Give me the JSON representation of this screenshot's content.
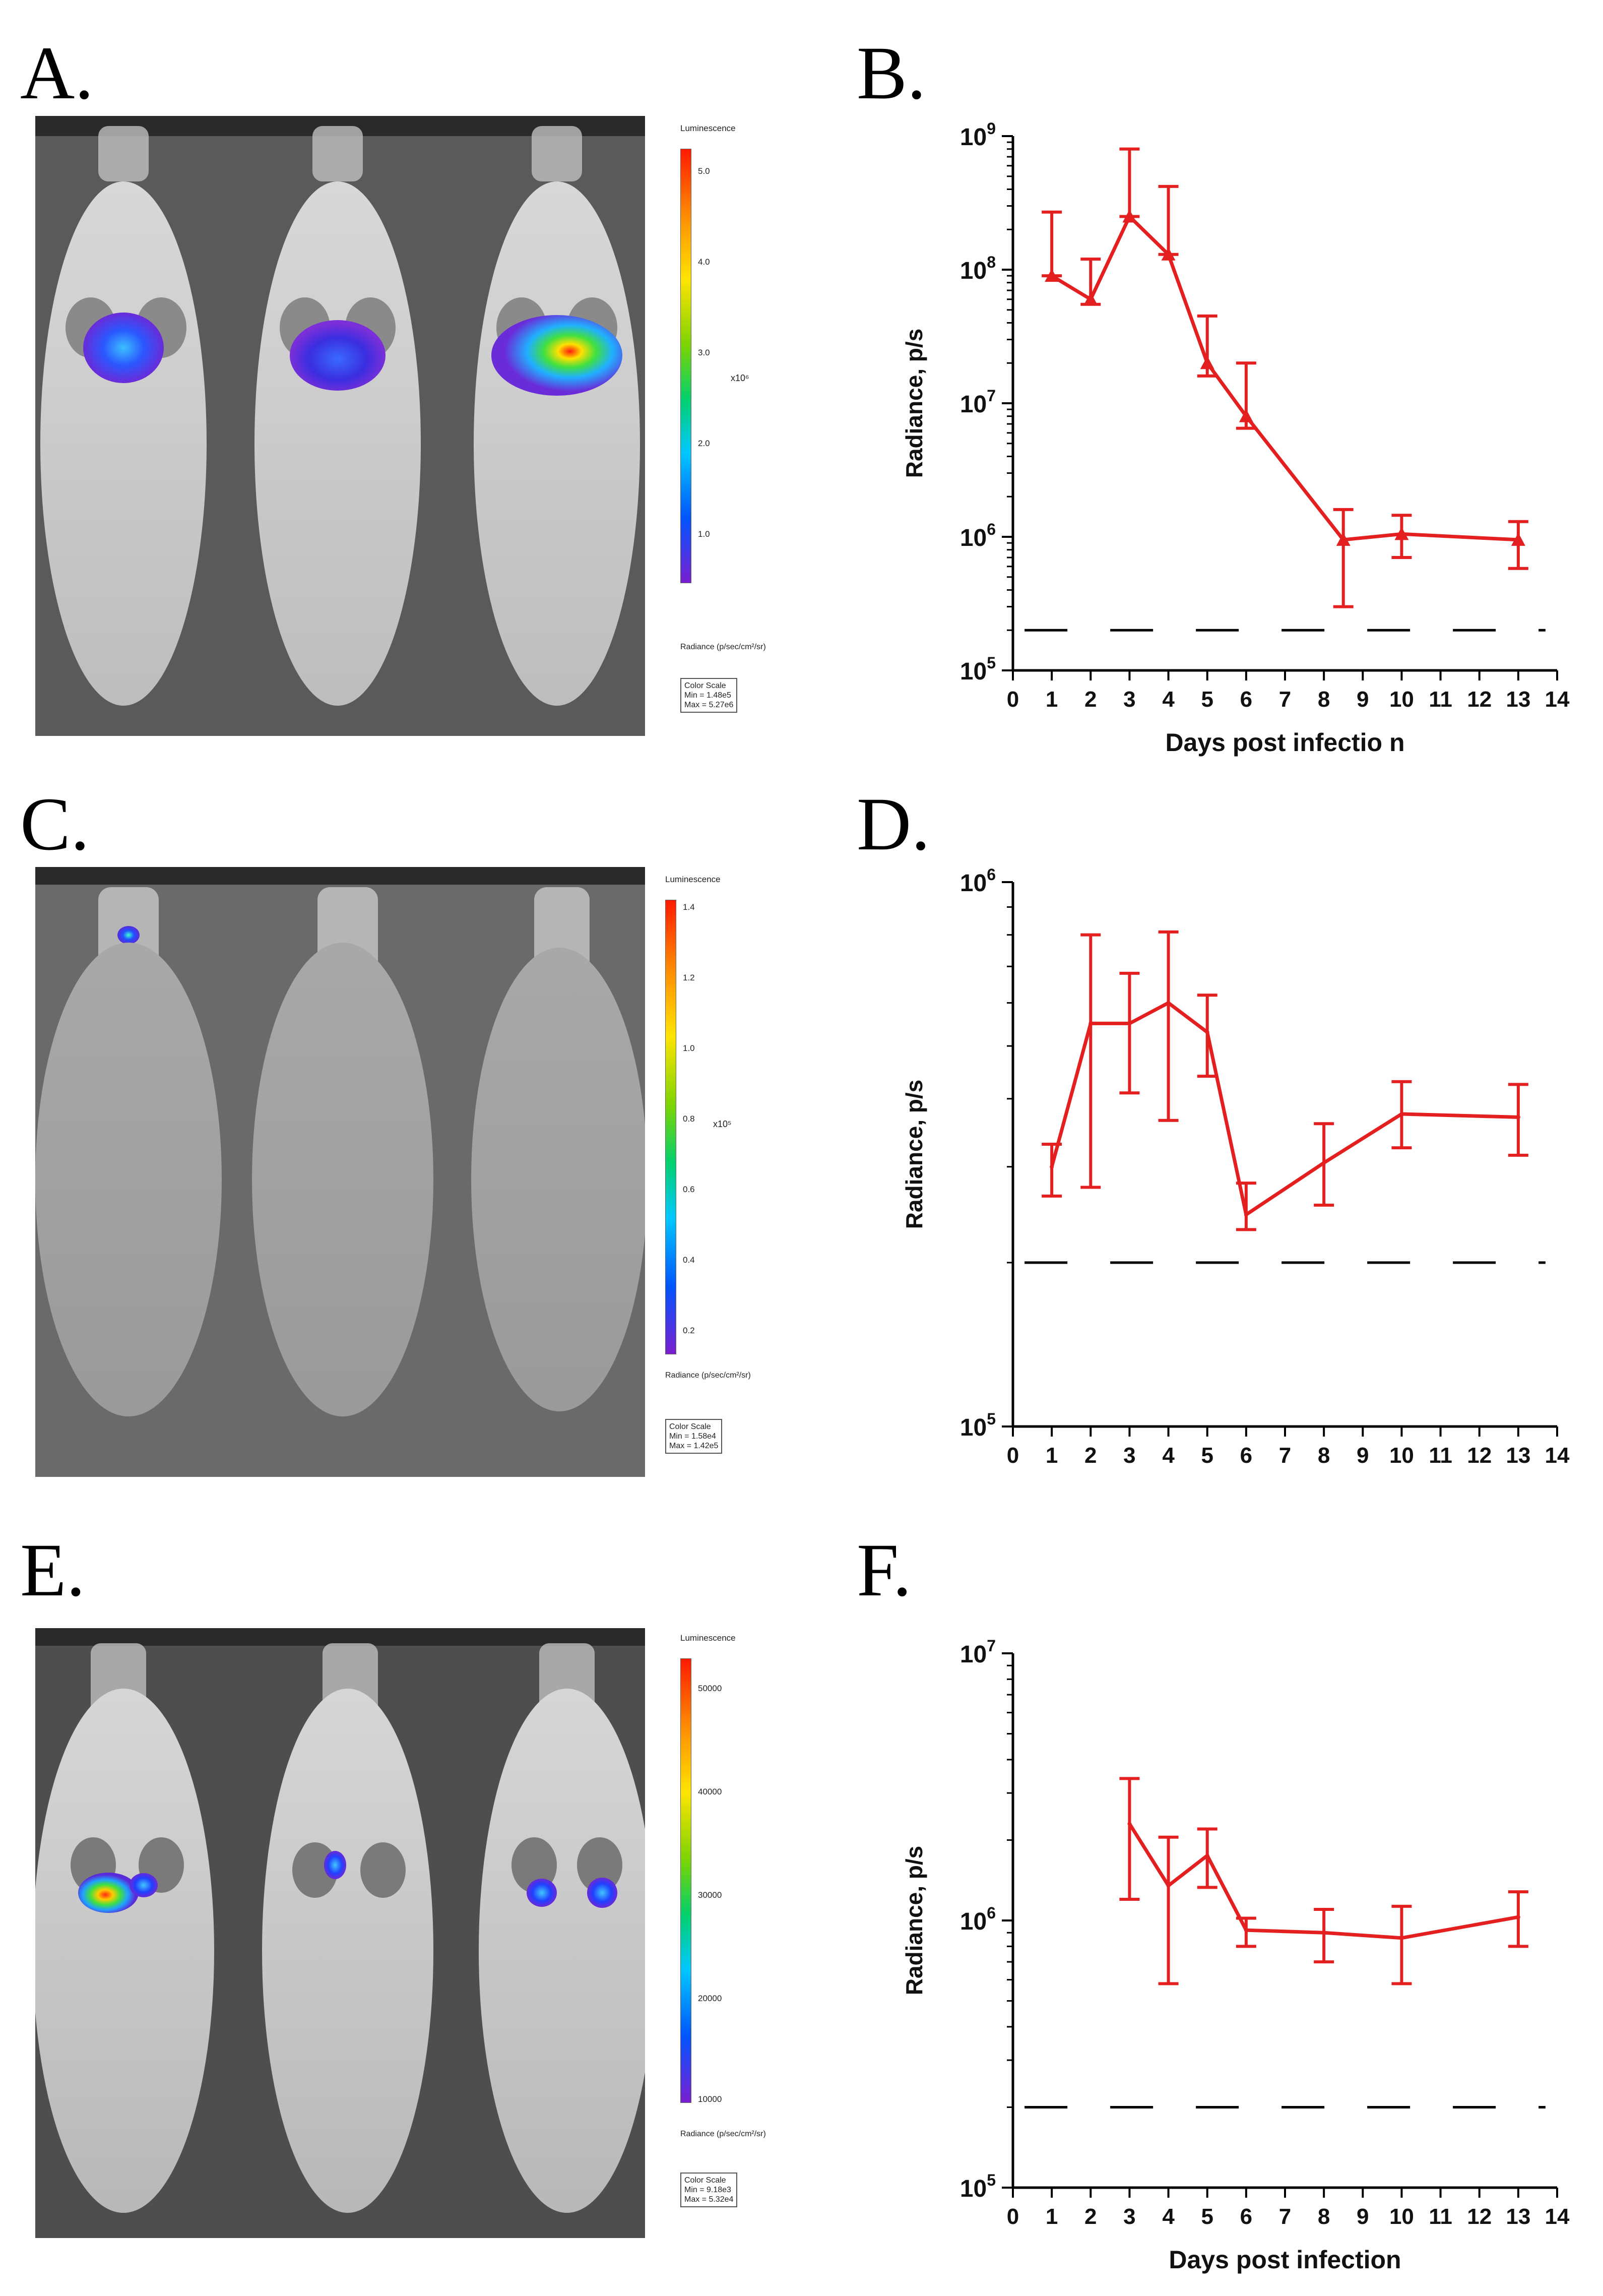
{
  "panels": {
    "A": {
      "label": "A."
    },
    "B": {
      "label": "B."
    },
    "C": {
      "label": "C."
    },
    "D": {
      "label": "D."
    },
    "E": {
      "label": "E."
    },
    "F": {
      "label": "F."
    }
  },
  "colors": {
    "series": "#e41f1f",
    "axis": "#000000",
    "threshold": "#000000"
  },
  "legends": {
    "A": {
      "title": "Luminescence",
      "ticks": [
        "5.0",
        "4.0",
        "3.0",
        "2.0",
        "1.0"
      ],
      "exponent": "x10⁶",
      "radiance": "Radiance (p/sec/cm²/sr)",
      "scale_title": "Color Scale",
      "scale_min": "Min = 1.48e5",
      "scale_max": "Max = 5.27e6"
    },
    "C": {
      "title": "Luminescence",
      "ticks": [
        "1.4",
        "1.2",
        "1.0",
        "0.8",
        "0.6",
        "0.4",
        "0.2"
      ],
      "exponent": "x10⁵",
      "radiance": "Radiance (p/sec/cm²/sr)",
      "scale_title": "Color Scale",
      "scale_min": "Min = 1.58e4",
      "scale_max": "Max = 1.42e5"
    },
    "E": {
      "title": "Luminescence",
      "ticks": [
        "50000",
        "40000",
        "30000",
        "20000",
        "10000"
      ],
      "exponent": "",
      "radiance": "Radiance (p/sec/cm²/sr)",
      "scale_title": "Color Scale",
      "scale_min": "Min = 9.18e3",
      "scale_max": "Max = 5.32e4"
    }
  },
  "chart_data": [
    {
      "panel": "B",
      "type": "line",
      "yscale": "log",
      "title": "",
      "xlabel": "Days post infectio n",
      "ylabel": "Radiance, p/s",
      "xlim": [
        0,
        14
      ],
      "ylim": [
        100000,
        1000000000
      ],
      "xticks": [
        "0",
        "1",
        "2",
        "3",
        "4",
        "5",
        "6",
        "7",
        "8",
        "9",
        "10",
        "11",
        "12",
        "13",
        "14"
      ],
      "yticks": [
        {
          "base": "10",
          "exp": "5"
        },
        {
          "base": "10",
          "exp": "6"
        },
        {
          "base": "10",
          "exp": "7"
        },
        {
          "base": "10",
          "exp": "8"
        },
        {
          "base": "10",
          "exp": "9"
        }
      ],
      "marker": "triangle",
      "series": [
        {
          "name": "Radiance",
          "x": [
            1,
            2,
            3,
            4,
            5,
            6,
            8.5,
            10,
            13
          ],
          "y": [
            90000000,
            60000000,
            250000000,
            130000000,
            20000000,
            8000000,
            950000,
            1050000,
            950000
          ],
          "err_high": [
            270000000,
            120000000,
            800000000,
            420000000,
            45000000,
            20000000,
            1600000,
            1450000,
            1300000
          ],
          "err_low": [
            90000000,
            55000000,
            250000000,
            130000000,
            16000000,
            6500000,
            300000,
            700000,
            580000
          ]
        }
      ],
      "threshold": 200000
    },
    {
      "panel": "D",
      "type": "line",
      "yscale": "log",
      "title": "",
      "xlabel": "",
      "ylabel": "Radiance, p/s",
      "xlim": [
        0,
        14
      ],
      "ylim": [
        100000,
        1000000
      ],
      "xticks": [
        "0",
        "1",
        "2",
        "3",
        "4",
        "5",
        "6",
        "7",
        "8",
        "9",
        "10",
        "11",
        "12",
        "13",
        "14"
      ],
      "yticks": [
        {
          "base": "10",
          "exp": "5"
        },
        {
          "base": "10",
          "exp": "6"
        }
      ],
      "marker": "none",
      "series": [
        {
          "name": "Radiance",
          "x": [
            1,
            2,
            3,
            4,
            5,
            6,
            8,
            10,
            13
          ],
          "y": [
            300000,
            550000,
            550000,
            600000,
            530000,
            245000,
            305000,
            375000,
            370000
          ],
          "err_high": [
            330000,
            800000,
            680000,
            810000,
            620000,
            280000,
            360000,
            430000,
            425000
          ],
          "err_low": [
            265000,
            275000,
            410000,
            365000,
            440000,
            230000,
            255000,
            325000,
            315000
          ]
        }
      ],
      "threshold": 200000
    },
    {
      "panel": "F",
      "type": "line",
      "yscale": "log",
      "title": "",
      "xlabel": "Days post infection",
      "ylabel": "Radiance, p/s",
      "xlim": [
        0,
        14
      ],
      "ylim": [
        100000,
        10000000
      ],
      "xticks": [
        "0",
        "1",
        "2",
        "3",
        "4",
        "5",
        "6",
        "7",
        "8",
        "9",
        "10",
        "11",
        "12",
        "13",
        "14"
      ],
      "yticks": [
        {
          "base": "10",
          "exp": "5"
        },
        {
          "base": "10",
          "exp": "6"
        },
        {
          "base": "10",
          "exp": "7"
        }
      ],
      "marker": "none",
      "series": [
        {
          "name": "Radiance",
          "x": [
            3,
            4,
            5,
            6,
            8,
            10,
            13
          ],
          "y": [
            2300000,
            1350000,
            1750000,
            920000,
            900000,
            860000,
            1030000
          ],
          "err_high": [
            3400000,
            2050000,
            2200000,
            1020000,
            1100000,
            1130000,
            1280000
          ],
          "err_low": [
            1200000,
            580000,
            1330000,
            800000,
            700000,
            580000,
            800000
          ]
        }
      ],
      "threshold": 200000
    }
  ]
}
